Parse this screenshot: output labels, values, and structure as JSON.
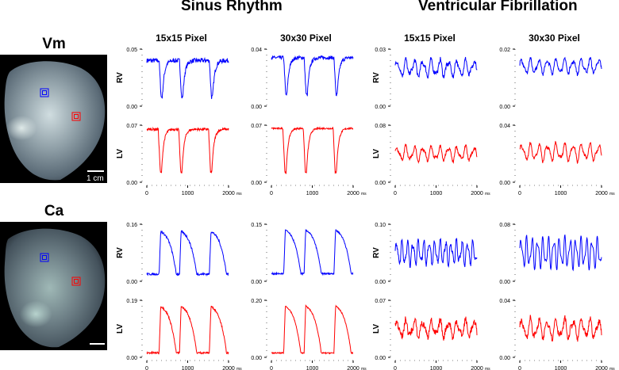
{
  "titles": {
    "sinus": "Sinus Rhythm",
    "vfib": "Ventricular Fibrillation",
    "vm": "Vm",
    "ca": "Ca",
    "scale_bar": "1 cm"
  },
  "colors": {
    "rv": "#0000ff",
    "lv": "#ff0000",
    "roi_blue": "#0000ff",
    "roi_red": "#ff0000"
  },
  "chart_data": {
    "type": "line",
    "x_unit": "ms",
    "xlim": [
      0,
      2000
    ],
    "xticks": [
      0,
      1000,
      2000
    ],
    "column_headers": [
      "15x15 Pixel",
      "30x30 Pixel",
      "15x15 Pixel",
      "30x30 Pixel"
    ],
    "rhythms": [
      "Sinus Rhythm",
      "Sinus Rhythm",
      "Ventricular Fibrillation",
      "Ventricular Fibrillation"
    ],
    "panels": [
      {
        "signal": "Vm",
        "region": "RV",
        "pixel": "15x15",
        "rhythm": "Sinus Rhythm",
        "ymin": 0,
        "ymax": 0.05,
        "ytick_labels": [
          "0.00",
          "0.05"
        ],
        "kind": "sr",
        "baseline": 0.04,
        "trough": 0.008,
        "upstrokes": [
          320,
          820,
          1550
        ],
        "noise": 0.002
      },
      {
        "signal": "Vm",
        "region": "RV",
        "pixel": "30x30",
        "rhythm": "Sinus Rhythm",
        "ymin": 0,
        "ymax": 0.04,
        "ytick_labels": [
          "0.00",
          "0.04"
        ],
        "kind": "sr",
        "baseline": 0.034,
        "trough": 0.008,
        "upstrokes": [
          320,
          820,
          1550
        ],
        "noise": 0.0012
      },
      {
        "signal": "Vm",
        "region": "RV",
        "pixel": "15x15",
        "rhythm": "Ventricular Fibrillation",
        "ymin": 0,
        "ymax": 0.03,
        "ytick_labels": [
          "0.00",
          "0.03"
        ],
        "kind": "vf",
        "mean": 0.02,
        "amp": 0.005,
        "noise": 0.0012
      },
      {
        "signal": "Vm",
        "region": "RV",
        "pixel": "30x30",
        "rhythm": "Ventricular Fibrillation",
        "ymin": 0,
        "ymax": 0.02,
        "ytick_labels": [
          "0.00",
          "0.02"
        ],
        "kind": "vf",
        "mean": 0.014,
        "amp": 0.003,
        "noise": 0.0006
      },
      {
        "signal": "Vm",
        "region": "LV",
        "pixel": "15x15",
        "rhythm": "Sinus Rhythm",
        "ymin": 0,
        "ymax": 0.07,
        "ytick_labels": [
          "0.00",
          "0.07"
        ],
        "kind": "sr",
        "baseline": 0.065,
        "trough": 0.012,
        "upstrokes": [
          300,
          800,
          1530
        ],
        "noise": 0.0015
      },
      {
        "signal": "Vm",
        "region": "LV",
        "pixel": "30x30",
        "rhythm": "Sinus Rhythm",
        "ymin": 0,
        "ymax": 0.07,
        "ytick_labels": [
          "0.00",
          "0.07"
        ],
        "kind": "sr",
        "baseline": 0.066,
        "trough": 0.012,
        "upstrokes": [
          300,
          800,
          1530
        ],
        "noise": 0.001
      },
      {
        "signal": "Vm",
        "region": "LV",
        "pixel": "15x15",
        "rhythm": "Ventricular Fibrillation",
        "ymin": 0,
        "ymax": 0.08,
        "ytick_labels": [
          "0.00",
          "0.08"
        ],
        "kind": "vf",
        "mean": 0.04,
        "amp": 0.012,
        "noise": 0.002
      },
      {
        "signal": "Vm",
        "region": "LV",
        "pixel": "30x30",
        "rhythm": "Ventricular Fibrillation",
        "ymin": 0,
        "ymax": 0.04,
        "ytick_labels": [
          "0.00",
          "0.04"
        ],
        "kind": "vf",
        "mean": 0.021,
        "amp": 0.007,
        "noise": 0.001
      },
      {
        "signal": "Ca",
        "region": "RV",
        "pixel": "15x15",
        "rhythm": "Sinus Rhythm",
        "ymin": 0,
        "ymax": 0.16,
        "ytick_labels": [
          "0.00",
          "0.16"
        ],
        "kind": "ca",
        "baseline": 0.02,
        "peak": 0.14,
        "upstrokes": [
          300,
          800,
          1530
        ],
        "noise": 0.003
      },
      {
        "signal": "Ca",
        "region": "RV",
        "pixel": "30x30",
        "rhythm": "Sinus Rhythm",
        "ymin": 0,
        "ymax": 0.15,
        "ytick_labels": [
          "0.00",
          "0.15"
        ],
        "kind": "ca",
        "baseline": 0.02,
        "peak": 0.135,
        "upstrokes": [
          300,
          800,
          1530
        ],
        "noise": 0.002
      },
      {
        "signal": "Ca",
        "region": "RV",
        "pixel": "15x15",
        "rhythm": "Ventricular Fibrillation",
        "ymin": 0,
        "ymax": 0.1,
        "ytick_labels": [
          "0.00",
          "0.10"
        ],
        "kind": "vf",
        "mean": 0.05,
        "amp": 0.025,
        "noise": 0.004,
        "freq": 7.5
      },
      {
        "signal": "Ca",
        "region": "RV",
        "pixel": "30x30",
        "rhythm": "Ventricular Fibrillation",
        "ymin": 0,
        "ymax": 0.08,
        "ytick_labels": [
          "0.00",
          "0.08"
        ],
        "kind": "vf",
        "mean": 0.04,
        "amp": 0.025,
        "noise": 0.001,
        "freq": 7.5
      },
      {
        "signal": "Ca",
        "region": "LV",
        "pixel": "15x15",
        "rhythm": "Sinus Rhythm",
        "ymin": 0,
        "ymax": 0.19,
        "ytick_labels": [
          "0.00",
          "0.19"
        ],
        "kind": "ca",
        "baseline": 0.015,
        "peak": 0.17,
        "upstrokes": [
          300,
          800,
          1530
        ],
        "noise": 0.003
      },
      {
        "signal": "Ca",
        "region": "LV",
        "pixel": "30x30",
        "rhythm": "Sinus Rhythm",
        "ymin": 0,
        "ymax": 0.2,
        "ytick_labels": [
          "0.00",
          "0.20"
        ],
        "kind": "ca",
        "baseline": 0.015,
        "peak": 0.18,
        "upstrokes": [
          300,
          800,
          1530
        ],
        "noise": 0.002
      },
      {
        "signal": "Ca",
        "region": "LV",
        "pixel": "15x15",
        "rhythm": "Ventricular Fibrillation",
        "ymin": 0,
        "ymax": 0.07,
        "ytick_labels": [
          "0.00",
          "0.07"
        ],
        "kind": "vf",
        "mean": 0.035,
        "amp": 0.012,
        "noise": 0.004
      },
      {
        "signal": "Ca",
        "region": "LV",
        "pixel": "30x30",
        "rhythm": "Ventricular Fibrillation",
        "ymin": 0,
        "ymax": 0.04,
        "ytick_labels": [
          "0.00",
          "0.04"
        ],
        "kind": "vf",
        "mean": 0.02,
        "amp": 0.008,
        "noise": 0.002
      }
    ]
  }
}
